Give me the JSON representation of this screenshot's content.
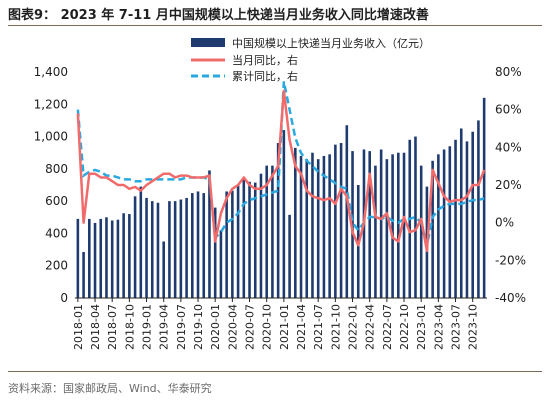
{
  "title": "图表9：  2023 年 7-11 月中国规模以上快递当月业务收入同比增速改善",
  "source": "资料来源：国家邮政局、Wind、华泰研究",
  "colors": {
    "bar": "#1f3a6e",
    "monthly_line": "#f26b6b",
    "cumulative_line": "#29a9e0"
  },
  "chart_data": {
    "type": "bar+line",
    "legend_position": "top-right",
    "grid": false,
    "legend": [
      {
        "key": "bar",
        "label": "中国规模以上快递当月业务收入（亿元）"
      },
      {
        "key": "monthly",
        "label": "当月同比，右"
      },
      {
        "key": "cumulative",
        "label": "累计同比，右"
      }
    ],
    "left_axis": {
      "min": 0,
      "max": 1400,
      "ticks": [
        "0",
        "200",
        "400",
        "600",
        "800",
        "1,000",
        "1,200",
        "1,400"
      ]
    },
    "right_axis": {
      "min": -40,
      "max": 80,
      "ticks": [
        "-40%",
        "-20%",
        "0%",
        "20%",
        "40%",
        "60%",
        "80%"
      ]
    },
    "x_tick_labels": [
      "2018-01",
      "2018-04",
      "2018-07",
      "2018-10",
      "2019-01",
      "2019-04",
      "2019-07",
      "2019-10",
      "2020-01",
      "2020-04",
      "2020-07",
      "2020-10",
      "2021-01",
      "2021-04",
      "2021-07",
      "2021-10",
      "2022-01",
      "2022-04",
      "2022-07",
      "2022-10",
      "2023-01",
      "2023-04",
      "2023-07",
      "2023-10"
    ],
    "x_tick_step": 3,
    "series": [
      {
        "name": "中国规模以上快递当月业务收入（亿元）",
        "type": "bar",
        "values": [
          490,
          285,
          490,
          465,
          490,
          500,
          480,
          485,
          525,
          520,
          630,
          690,
          620,
          600,
          590,
          350,
          600,
          600,
          610,
          620,
          650,
          660,
          650,
          790,
          560,
          420,
          660,
          665,
          700,
          745,
          720,
          715,
          770,
          820,
          820,
          960,
          1040,
          515,
          930,
          880,
          860,
          900,
          860,
          880,
          890,
          950,
          960,
          1070,
          910,
          700,
          920,
          910,
          820,
          920,
          860,
          890,
          900,
          900,
          980,
          1000,
          820,
          690,
          850,
          890,
          920,
          940,
          980,
          1050,
          970,
          1030,
          1100,
          1240
        ]
      },
      {
        "name": "当月同比，右",
        "type": "line",
        "values": [
          58,
          0,
          26,
          26,
          24,
          24,
          22,
          20,
          20,
          18,
          19,
          17,
          20,
          22,
          24,
          26,
          26,
          24,
          25,
          25,
          24,
          24,
          24,
          25,
          -10,
          5,
          13,
          18,
          20,
          24,
          20,
          18,
          18,
          20,
          25,
          30,
          70,
          44,
          30,
          26,
          17,
          14,
          13,
          12,
          13,
          10,
          18,
          14,
          -5,
          -12,
          0,
          26,
          3,
          2,
          5,
          -8,
          -10,
          3,
          -5,
          -4,
          2,
          -15,
          28,
          21,
          14,
          11,
          12,
          12,
          14,
          20,
          20,
          28
        ]
      },
      {
        "name": "累计同比，右",
        "type": "line",
        "values": [
          60,
          25,
          27,
          28,
          27,
          25,
          25,
          24,
          23,
          23,
          22,
          22,
          23,
          23,
          23,
          23,
          23,
          23,
          23,
          24,
          24,
          24,
          24,
          23,
          -8,
          -5,
          0,
          2,
          5,
          10,
          12,
          13,
          14,
          15,
          16,
          17,
          75,
          60,
          45,
          37,
          33,
          30,
          27,
          25,
          23,
          21,
          19,
          18,
          0,
          -4,
          0,
          3,
          3,
          2,
          3,
          1,
          0,
          2,
          2,
          3,
          0,
          -12,
          3,
          7,
          9,
          10,
          10,
          10,
          11,
          12,
          12,
          13
        ]
      }
    ]
  }
}
